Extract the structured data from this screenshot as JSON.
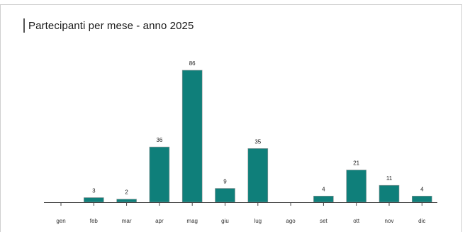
{
  "chart_data": {
    "type": "bar",
    "title": "Partecipanti per mese - anno 2025",
    "categories": [
      "gen",
      "feb",
      "mar",
      "apr",
      "mag",
      "giu",
      "lug",
      "ago",
      "set",
      "ott",
      "nov",
      "dic"
    ],
    "values": [
      0,
      3,
      2,
      36,
      86,
      9,
      35,
      0,
      4,
      21,
      11,
      4
    ],
    "value_labels": [
      "",
      "3",
      "2",
      "36",
      "86",
      "9",
      "35",
      "",
      "4",
      "21",
      "11",
      "4"
    ],
    "ylim": [
      0,
      86
    ],
    "grid": false,
    "legend": "none",
    "colors": {
      "bar": "#0f7f7a"
    }
  }
}
